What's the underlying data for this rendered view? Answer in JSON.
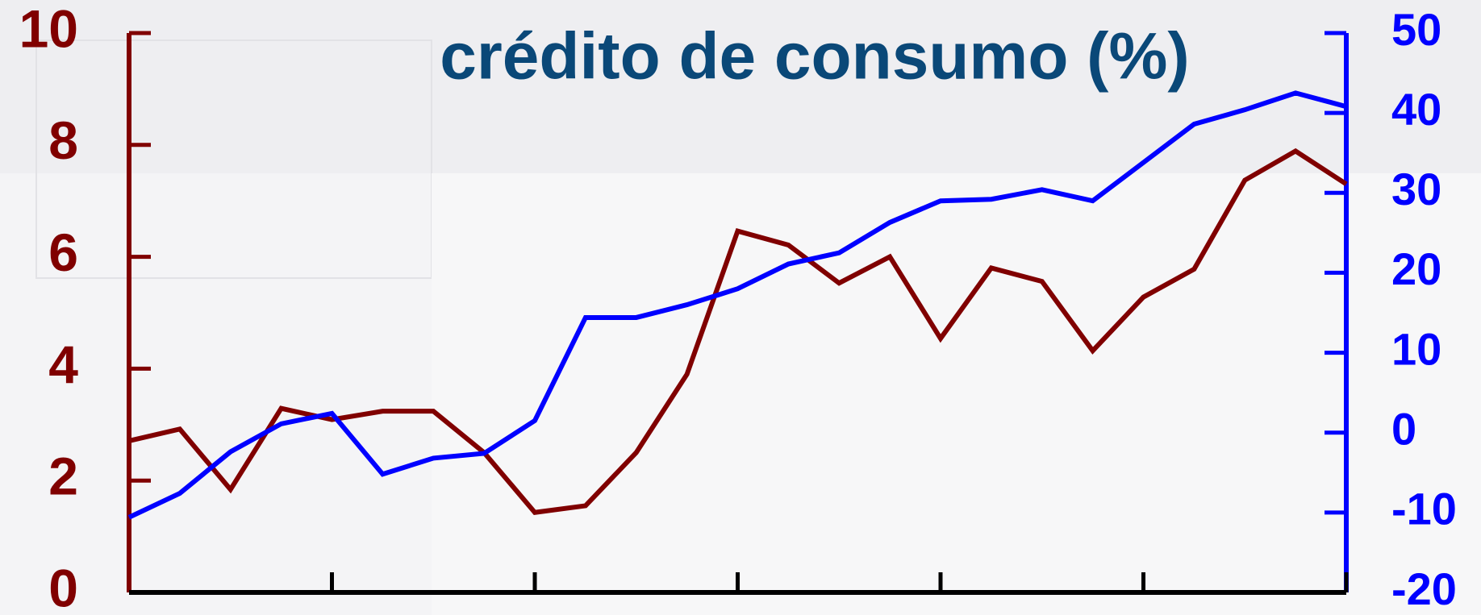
{
  "chart_data": {
    "type": "line",
    "title": "crédito de consumo (%)",
    "categories": [
      null,
      null,
      null,
      null,
      null,
      null,
      null,
      null,
      null,
      null,
      null,
      null,
      null,
      null,
      null,
      null,
      null,
      null,
      null,
      null,
      null,
      null,
      null,
      null,
      null
    ],
    "series": [
      {
        "name": null,
        "color": "#800000",
        "axis": "y",
        "values": [
          2.71,
          2.92,
          1.84,
          3.29,
          3.09,
          3.24,
          3.24,
          2.5,
          1.43,
          1.55,
          2.5,
          3.9,
          6.46,
          6.21,
          5.53,
          6.0,
          4.54,
          5.8,
          5.56,
          4.32,
          5.28,
          5.78,
          7.37,
          7.89,
          7.3
        ]
      },
      {
        "name": null,
        "color": "#0000ff",
        "axis": "y2",
        "values": [
          -10.6,
          -7.6,
          -2.4,
          1.1,
          2.4,
          -5.2,
          -3.2,
          -2.6,
          1.5,
          14.4,
          14.4,
          16.0,
          18.0,
          21.1,
          22.5,
          26.3,
          29.0,
          29.2,
          30.4,
          29.0,
          33.8,
          38.6,
          40.4,
          42.5,
          40.8
        ]
      }
    ],
    "ylim": [
      0,
      10
    ],
    "yticks": [
      0,
      2,
      4,
      6,
      8,
      10
    ],
    "y2lim": [
      -20,
      50
    ],
    "y2ticks": [
      -20,
      -10,
      0,
      10,
      20,
      30,
      40,
      50
    ],
    "ycolor": "#800000",
    "y2color": "#0000ff"
  }
}
